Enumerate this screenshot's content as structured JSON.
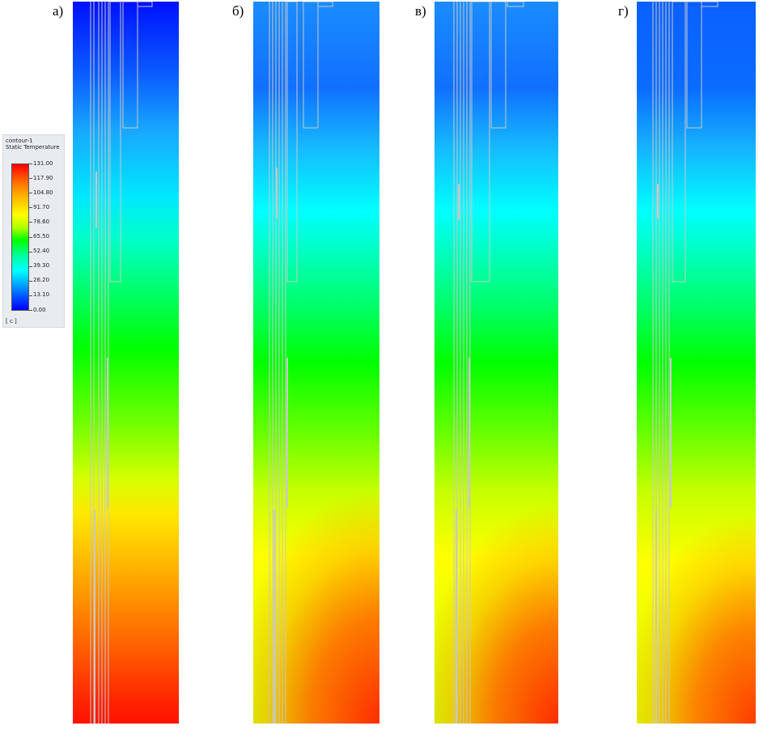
{
  "panels": [
    {
      "label": "а)"
    },
    {
      "label": "б)"
    },
    {
      "label": "в)"
    },
    {
      "label": "г)"
    }
  ],
  "legend": {
    "name": "contour-1",
    "variable": "Static Temperature",
    "unit": "[ c ]",
    "ticks": [
      "131.00",
      "117.90",
      "104.80",
      "91.70",
      "78.60",
      "65.50",
      "52.40",
      "39.30",
      "26.20",
      "13.10",
      "0.00"
    ],
    "range": [
      0,
      131
    ]
  },
  "colors": {
    "outline": "#c8c8c8"
  }
}
